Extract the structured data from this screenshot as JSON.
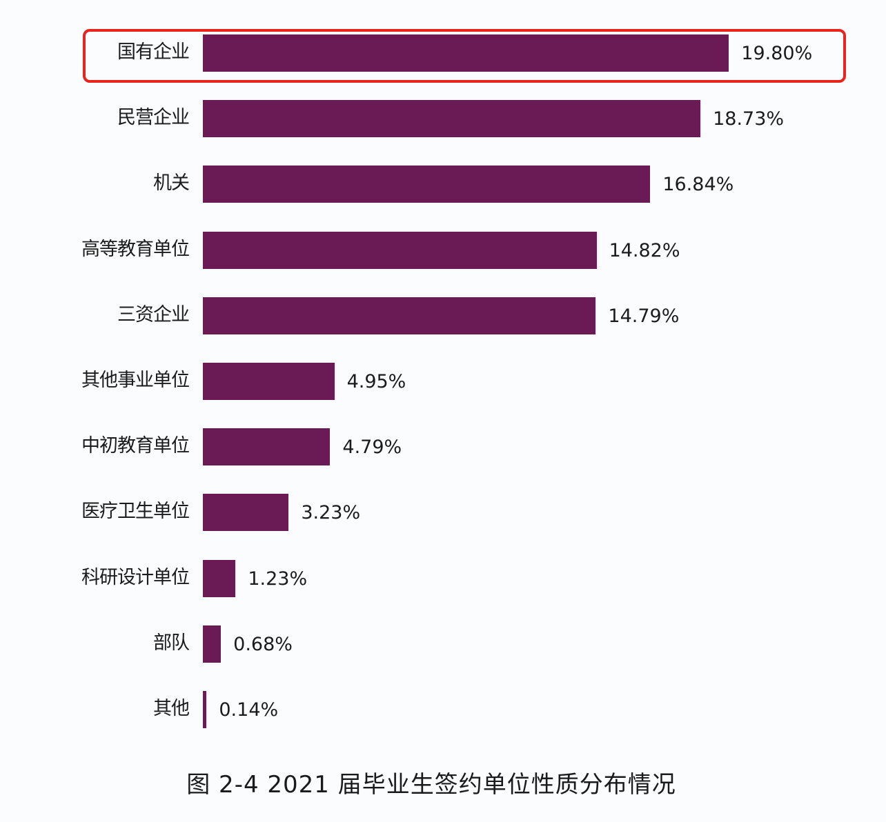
{
  "chart_data": {
    "type": "bar",
    "orientation": "horizontal",
    "title": "图 2-4 2021 届毕业生签约单位性质分布情况",
    "xlabel": "",
    "ylabel": "",
    "unit": "%",
    "grid": false,
    "legend": null,
    "bar_color": "#6a1a55",
    "highlight": {
      "category": "国有企业",
      "color": "#e8241c"
    },
    "categories": [
      "国有企业",
      "民营企业",
      "机关",
      "高等教育单位",
      "三资企业",
      "其他事业单位",
      "中初教育单位",
      "医疗卫生单位",
      "科研设计单位",
      "部队",
      "其他"
    ],
    "values": [
      19.8,
      18.73,
      16.84,
      14.82,
      14.79,
      4.95,
      4.79,
      3.23,
      1.23,
      0.68,
      0.14
    ],
    "value_labels": [
      "19.80%",
      "18.73%",
      "16.84%",
      "14.82%",
      "14.79%",
      "4.95%",
      "4.79%",
      "3.23%",
      "1.23%",
      "0.68%",
      "0.14%"
    ]
  },
  "caption": "图 2-4  2021 届毕业生签约单位性质分布情况"
}
